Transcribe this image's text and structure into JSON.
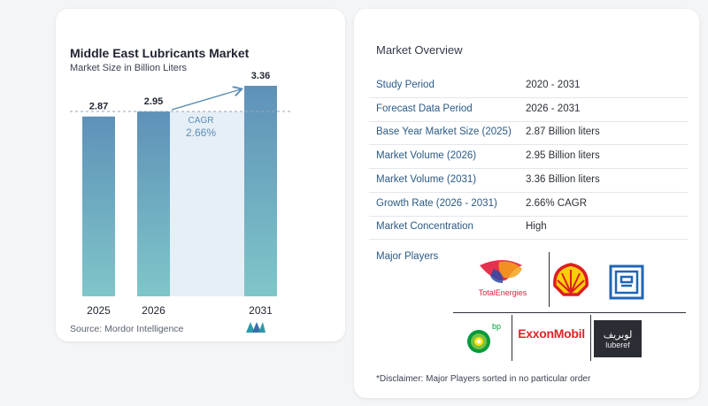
{
  "chart_data": {
    "type": "bar",
    "title": "Middle East Lubricants Market",
    "subtitle": "Market Size in Billion Liters",
    "categories": [
      "2025",
      "2026",
      "2031"
    ],
    "values": [
      2.87,
      2.95,
      3.36
    ],
    "value_labels": [
      "2.87",
      "2.95",
      "3.36"
    ],
    "ylim": [
      0,
      3.6
    ],
    "grid": false,
    "annotation": {
      "label": "CAGR",
      "value": "2.66%"
    },
    "reference_line": 2.95
  },
  "source": "Source:  Mordor Intelligence",
  "overview": {
    "title": "Market Overview",
    "rows": [
      {
        "key": "Study Period",
        "value": "2020 - 2031"
      },
      {
        "key": "Forecast Data Period",
        "value": "2026 - 2031"
      },
      {
        "key": "Base Year Market Size (2025)",
        "value": "2.87 Billion liters"
      },
      {
        "key": "Market Volume (2026)",
        "value": "2.95 Billion liters"
      },
      {
        "key": "Market Volume (2031)",
        "value": "3.36 Billion liters"
      },
      {
        "key": "Growth Rate (2026 - 2031)",
        "value": "2.66% CAGR"
      },
      {
        "key": "Market Concentration",
        "value": "High"
      }
    ],
    "major_players_label": "Major Players",
    "players": [
      "TotalEnergies",
      "Shell",
      "ADNOC",
      "bp",
      "ExxonMobil",
      "luberef"
    ],
    "luberef_arabic": "لوبريف",
    "bp_text": "bp",
    "disclaimer": "*Disclaimer: Major Players sorted in no particular order"
  },
  "colors": {
    "bar_top": "#5f91b8",
    "bar_bottom": "#7fc6c9",
    "accent": "#5c8fb6",
    "key_text": "#2a5a86"
  }
}
